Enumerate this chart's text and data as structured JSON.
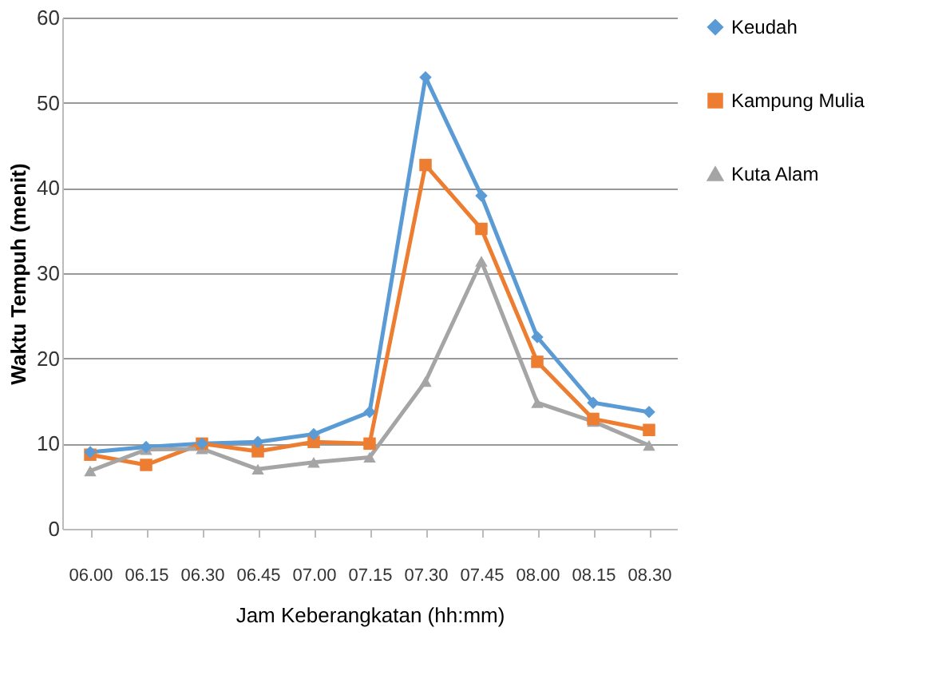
{
  "chart_data": {
    "type": "line",
    "xlabel": "Jam Keberangkatan (hh:mm)",
    "ylabel": "Waktu Tempuh (menit)",
    "categories": [
      "06.00",
      "06.15",
      "06.30",
      "06.45",
      "07.00",
      "07.15",
      "07.30",
      "07.45",
      "08.00",
      "08.15",
      "08.30"
    ],
    "series": [
      {
        "name": "Keudah",
        "color": "#5b9bd5",
        "marker": "diamond",
        "values": [
          9.0,
          9.6,
          10,
          10.2,
          11.1,
          13.7,
          53,
          39.1,
          22.5,
          14.8,
          13.7
        ]
      },
      {
        "name": "Kampung Mulia",
        "color": "#ed7d31",
        "marker": "square",
        "values": [
          8.7,
          7.5,
          10,
          9.1,
          10.2,
          10,
          42.7,
          35.2,
          19.6,
          12.9,
          11.6
        ]
      },
      {
        "name": "Kuta Alam",
        "color": "#a5a5a5",
        "marker": "triangle",
        "values": [
          6.8,
          9.3,
          9.4,
          7.0,
          7.8,
          8.4,
          17.3,
          31.4,
          14.8,
          12.6,
          9.8
        ]
      }
    ],
    "ylim": [
      0,
      60
    ],
    "yticks": [
      0,
      10,
      20,
      30,
      40,
      50,
      60
    ],
    "grid": "y",
    "legend": "right",
    "line_style": "solid"
  }
}
